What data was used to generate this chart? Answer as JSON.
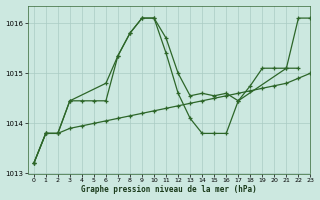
{
  "title": "Graphe pression niveau de la mer (hPa)",
  "bg_color": "#cce8e0",
  "grid_color": "#aaccc4",
  "line_color": "#2d6629",
  "xlim": [
    -0.5,
    23
  ],
  "ylim": [
    1013.0,
    1016.35
  ],
  "yticks": [
    1013,
    1014,
    1015,
    1016
  ],
  "xticks": [
    0,
    1,
    2,
    3,
    4,
    5,
    6,
    7,
    8,
    9,
    10,
    11,
    12,
    13,
    14,
    15,
    16,
    17,
    18,
    19,
    20,
    21,
    22,
    23
  ],
  "x_all": [
    0,
    1,
    2,
    3,
    4,
    5,
    6,
    7,
    8,
    9,
    10,
    11,
    12,
    13,
    14,
    15,
    16,
    17,
    18,
    19,
    20,
    21,
    22,
    23
  ],
  "line_jagged_x": [
    0,
    1,
    2,
    3,
    4,
    5,
    6,
    7,
    8,
    9,
    10,
    11,
    12,
    13,
    14,
    15,
    16,
    17,
    21,
    22
  ],
  "line_jagged_y": [
    1013.2,
    1013.8,
    1013.8,
    1014.45,
    1014.45,
    1014.45,
    1014.45,
    1015.35,
    1015.8,
    1016.1,
    1016.1,
    1015.4,
    1014.6,
    1014.1,
    1013.8,
    1013.8,
    1013.8,
    1014.45,
    1015.1,
    1015.1
  ],
  "line_top_x": [
    0,
    1,
    2,
    3,
    6,
    7,
    8,
    9,
    10,
    11,
    12,
    13,
    14,
    15,
    16,
    17,
    18,
    19,
    20,
    21,
    22,
    23
  ],
  "line_top_y": [
    1013.2,
    1013.8,
    1013.8,
    1014.45,
    1014.8,
    1015.35,
    1015.8,
    1016.1,
    1016.1,
    1015.7,
    1015.0,
    1014.55,
    1014.6,
    1014.55,
    1014.6,
    1014.45,
    1014.75,
    1015.1,
    1015.1,
    1015.1,
    1016.1,
    1016.1
  ],
  "line_smooth_x": [
    0,
    1,
    2,
    3,
    4,
    5,
    6,
    7,
    8,
    9,
    10,
    11,
    12,
    13,
    14,
    15,
    16,
    17,
    18,
    19,
    20,
    21,
    22,
    23
  ],
  "line_smooth_y": [
    1013.2,
    1013.8,
    1013.8,
    1013.9,
    1013.95,
    1014.0,
    1014.05,
    1014.1,
    1014.15,
    1014.2,
    1014.25,
    1014.3,
    1014.35,
    1014.4,
    1014.45,
    1014.5,
    1014.55,
    1014.6,
    1014.65,
    1014.7,
    1014.75,
    1014.8,
    1014.9,
    1015.0
  ]
}
